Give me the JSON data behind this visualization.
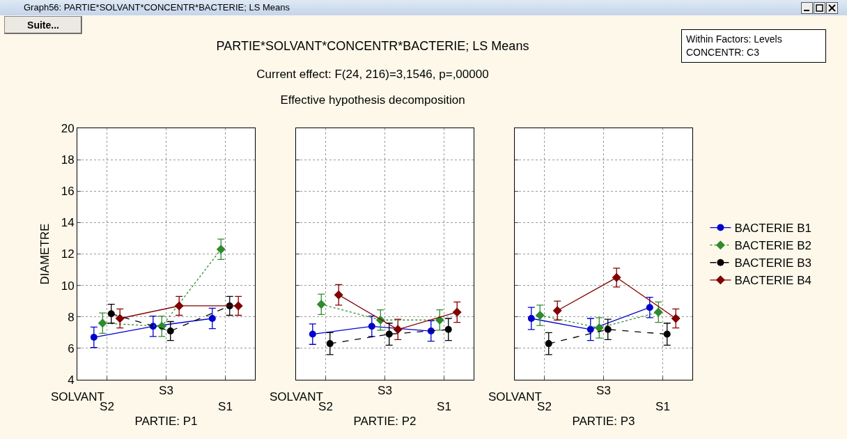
{
  "chart_data": [
    {
      "type": "line",
      "xlabel": "PARTIE: P1",
      "ylabel": "DIAMETRE",
      "categories": [
        "S2",
        "S3",
        "S1"
      ],
      "ylim": [
        4,
        20
      ],
      "yticks": [
        4,
        6,
        8,
        10,
        12,
        14,
        16,
        18,
        20
      ],
      "grid": true,
      "legend": false,
      "annotations": [
        "Graph56: PARTIE*SOLVANT*CONCENTR*BACTERIE; LS Means",
        "Suite...",
        "Within Factors: Levels\nCONCENTR: C3",
        "SOLVANT"
      ],
      "series": [
        {
          "color": "#0000cc",
          "marker": "circle",
          "line_style": "solid",
          "values": [
            6.7,
            7.4,
            7.9
          ],
          "errors": [
            0.65,
            0.65,
            0.65
          ]
        },
        {
          "color": "#2e8b2e",
          "marker": "diamond",
          "line_style": "dotted",
          "values": [
            7.6,
            7.4,
            12.3
          ],
          "errors": [
            0.65,
            0.65,
            0.65
          ]
        },
        {
          "color": "#000000",
          "marker": "circle",
          "line_style": "dashed",
          "values": [
            8.2,
            7.1,
            8.7
          ],
          "errors": [
            0.6,
            0.6,
            0.6
          ]
        },
        {
          "color": "#800000",
          "marker": "diamond",
          "line_style": "solid",
          "values": [
            7.9,
            8.7,
            8.7
          ],
          "errors": [
            0.6,
            0.6,
            0.6
          ]
        }
      ]
    },
    {
      "type": "line",
      "title": "PARTIE*SOLVANT*CONCENTR*BACTERIE; LS Means",
      "subtitle": "Current effect: F(24, 216)=3,1546, p=,00000\nEffective hypothesis decomposition",
      "xlabel": "PARTIE: P2",
      "categories": [
        "S2",
        "S3",
        "S1"
      ],
      "ylim": [
        4,
        20
      ],
      "yticks": [
        4,
        6,
        8,
        10,
        12,
        14,
        16,
        18,
        20
      ],
      "grid": true,
      "legend": false,
      "tick_labels": "x",
      "annotations": [
        "SOLVANT"
      ],
      "series": [
        {
          "color": "#0000cc",
          "marker": "circle",
          "line_style": "solid",
          "values": [
            6.9,
            7.4,
            7.1
          ],
          "errors": [
            0.65,
            0.65,
            0.65
          ]
        },
        {
          "color": "#2e8b2e",
          "marker": "diamond",
          "line_style": "dotted",
          "values": [
            8.8,
            7.8,
            7.8
          ],
          "errors": [
            0.65,
            0.65,
            0.65
          ]
        },
        {
          "color": "#000000",
          "marker": "circle",
          "line_style": "dashed",
          "values": [
            6.3,
            6.9,
            7.2
          ],
          "errors": [
            0.7,
            0.7,
            0.7
          ]
        },
        {
          "color": "#800000",
          "marker": "diamond",
          "line_style": "solid",
          "values": [
            9.4,
            7.2,
            8.3
          ],
          "errors": [
            0.65,
            0.65,
            0.65
          ]
        }
      ]
    },
    {
      "type": "line",
      "xlabel": "PARTIE: P3",
      "categories": [
        "S2",
        "S3",
        "S1"
      ],
      "ylim": [
        4,
        20
      ],
      "yticks": [
        4,
        6,
        8,
        10,
        12,
        14,
        16,
        18,
        20
      ],
      "grid": true,
      "legend": "right",
      "tick_labels": "x",
      "annotations": [
        "SOLVANT"
      ],
      "series": [
        {
          "name": "BACTERIE B1",
          "color": "#0000cc",
          "marker": "circle",
          "line_style": "solid",
          "values": [
            7.9,
            7.2,
            8.6
          ],
          "errors": [
            0.7,
            0.7,
            0.65
          ]
        },
        {
          "name": "BACTERIE B2",
          "color": "#2e8b2e",
          "marker": "diamond",
          "line_style": "dotted",
          "values": [
            8.1,
            7.3,
            8.3
          ],
          "errors": [
            0.65,
            0.65,
            0.65
          ]
        },
        {
          "name": "BACTERIE B3",
          "color": "#000000",
          "marker": "circle",
          "line_style": "dashed",
          "values": [
            6.3,
            7.2,
            6.9
          ],
          "errors": [
            0.7,
            0.65,
            0.7
          ]
        },
        {
          "name": "BACTERIE B4",
          "color": "#800000",
          "marker": "diamond",
          "line_style": "solid",
          "values": [
            8.4,
            10.5,
            7.9
          ],
          "errors": [
            0.6,
            0.6,
            0.6
          ]
        }
      ]
    }
  ]
}
